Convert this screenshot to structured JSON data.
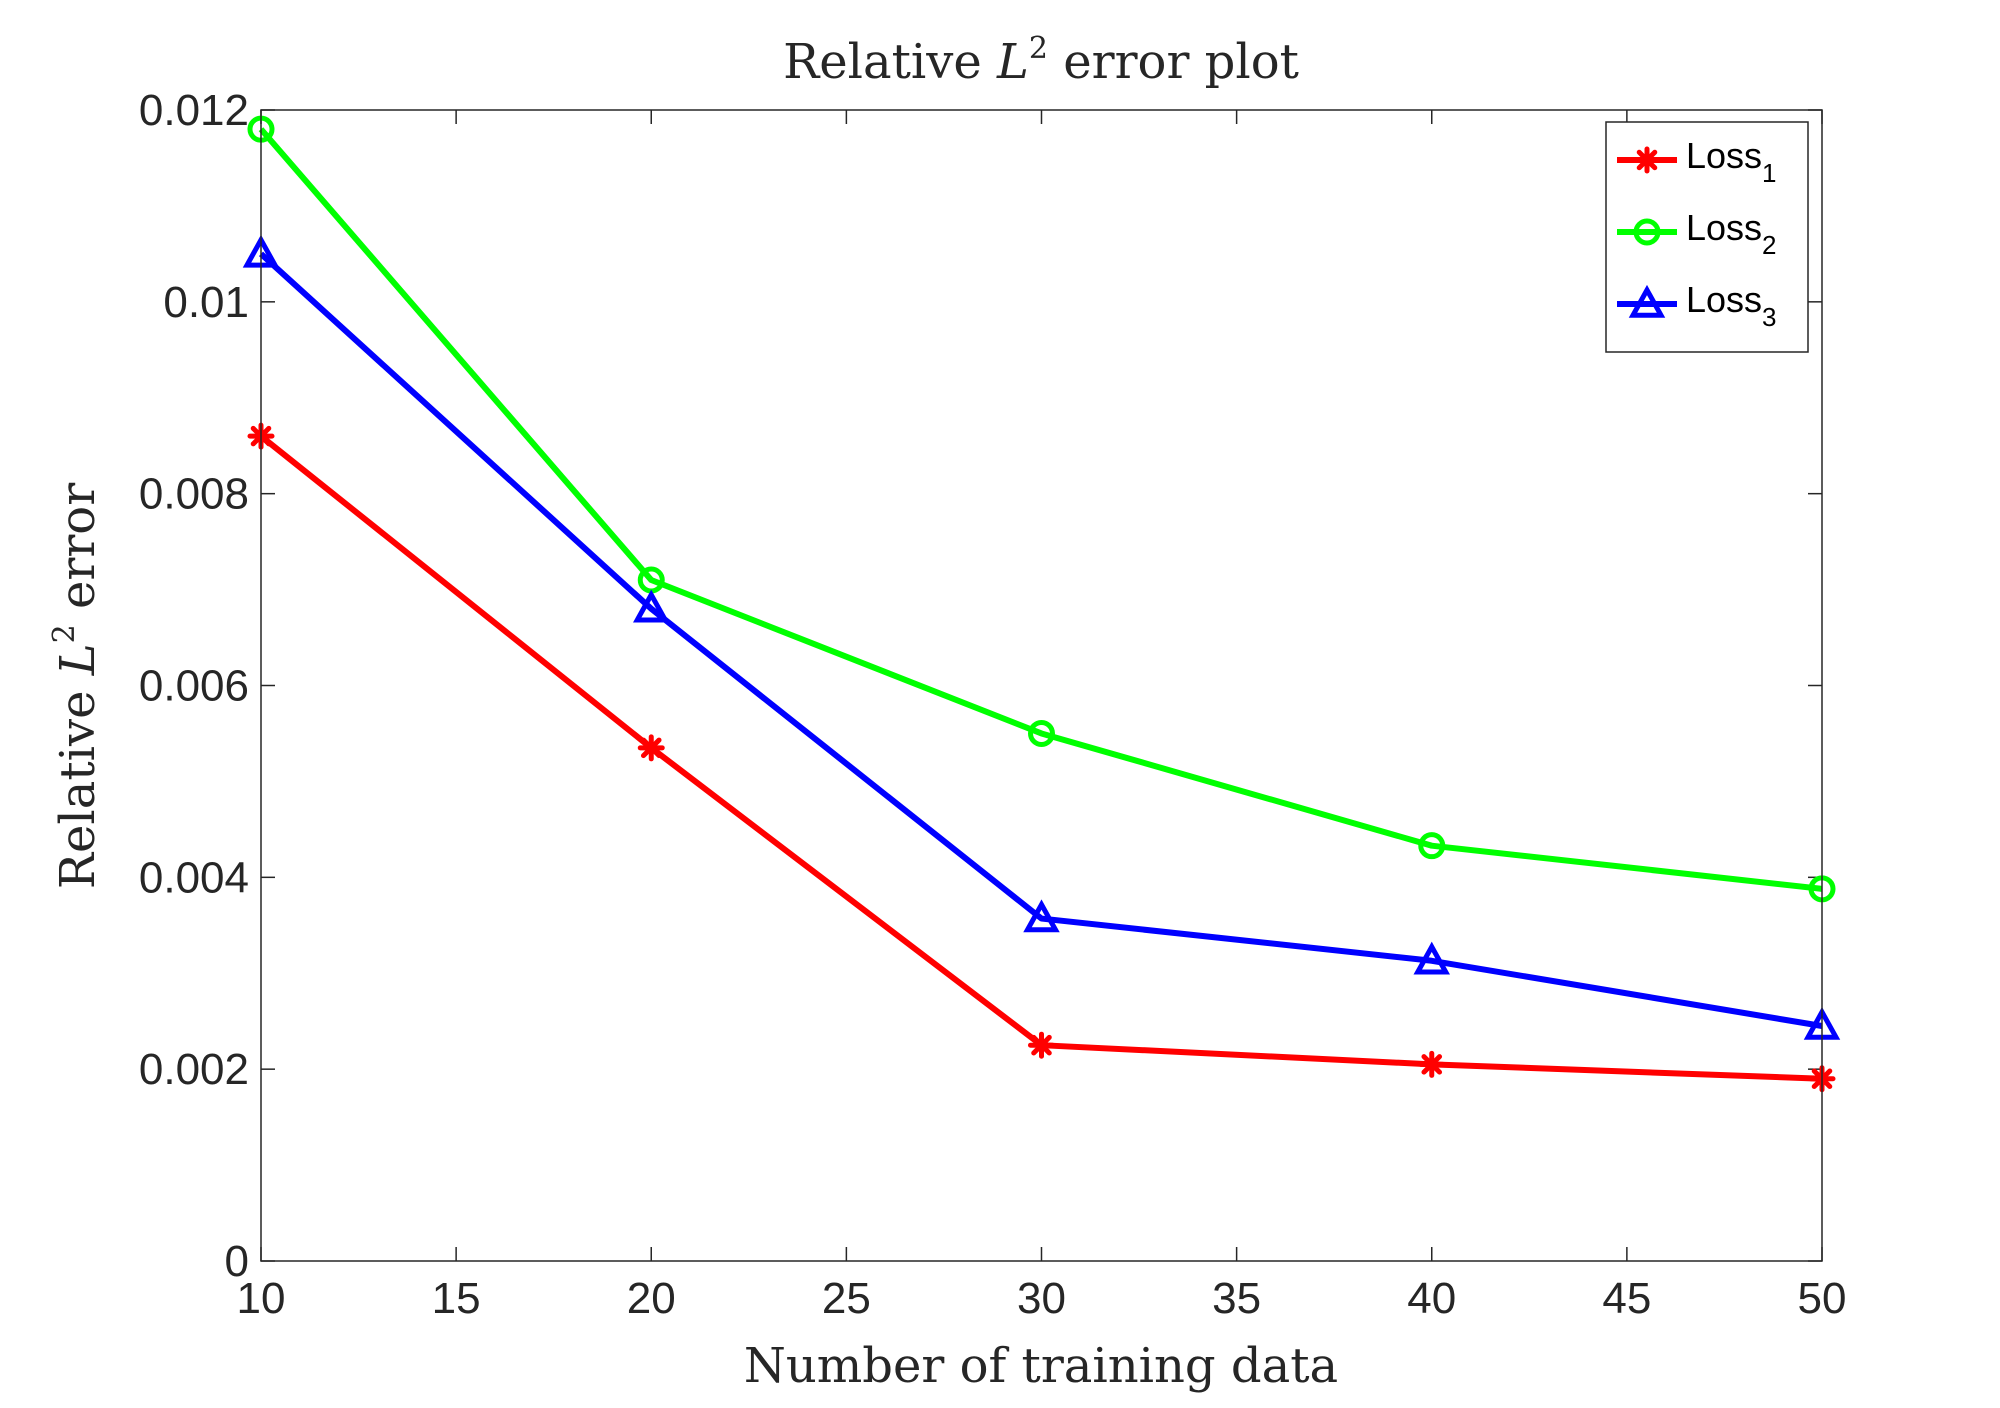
{
  "chart_data": {
    "type": "line",
    "title": {
      "prefix": "Relative ",
      "var": "L",
      "sup": "2",
      "suffix": " error plot"
    },
    "xlabel": "Number of training data",
    "ylabel": {
      "prefix": "Relative ",
      "var": "L",
      "sup": "2",
      "suffix": " error"
    },
    "xlim": [
      10,
      50
    ],
    "ylim": [
      0,
      0.012
    ],
    "xticks": [
      10,
      15,
      20,
      25,
      30,
      35,
      40,
      45,
      50
    ],
    "xtick_labels": [
      "10",
      "15",
      "20",
      "25",
      "30",
      "35",
      "40",
      "45",
      "50"
    ],
    "yticks": [
      0,
      0.002,
      0.004,
      0.006,
      0.008,
      0.01,
      0.012
    ],
    "ytick_labels": [
      "0",
      "0.002",
      "0.004",
      "0.006",
      "0.008",
      "0.01",
      "0.012"
    ],
    "grid": false,
    "legend_position": "top-right",
    "x": [
      10,
      20,
      30,
      40,
      50
    ],
    "series": [
      {
        "name": "Loss",
        "sub": "1",
        "color": "#ff0000",
        "marker": "asterisk",
        "values": [
          0.0086,
          0.00535,
          0.00225,
          0.00205,
          0.0019
        ]
      },
      {
        "name": "Loss",
        "sub": "2",
        "color": "#00ff00",
        "marker": "circle",
        "values": [
          0.0118,
          0.0071,
          0.0055,
          0.00433,
          0.00388
        ]
      },
      {
        "name": "Loss",
        "sub": "3",
        "color": "#0000ff",
        "marker": "triangle",
        "values": [
          0.0105,
          0.0068,
          0.00357,
          0.00313,
          0.00245
        ]
      }
    ]
  }
}
